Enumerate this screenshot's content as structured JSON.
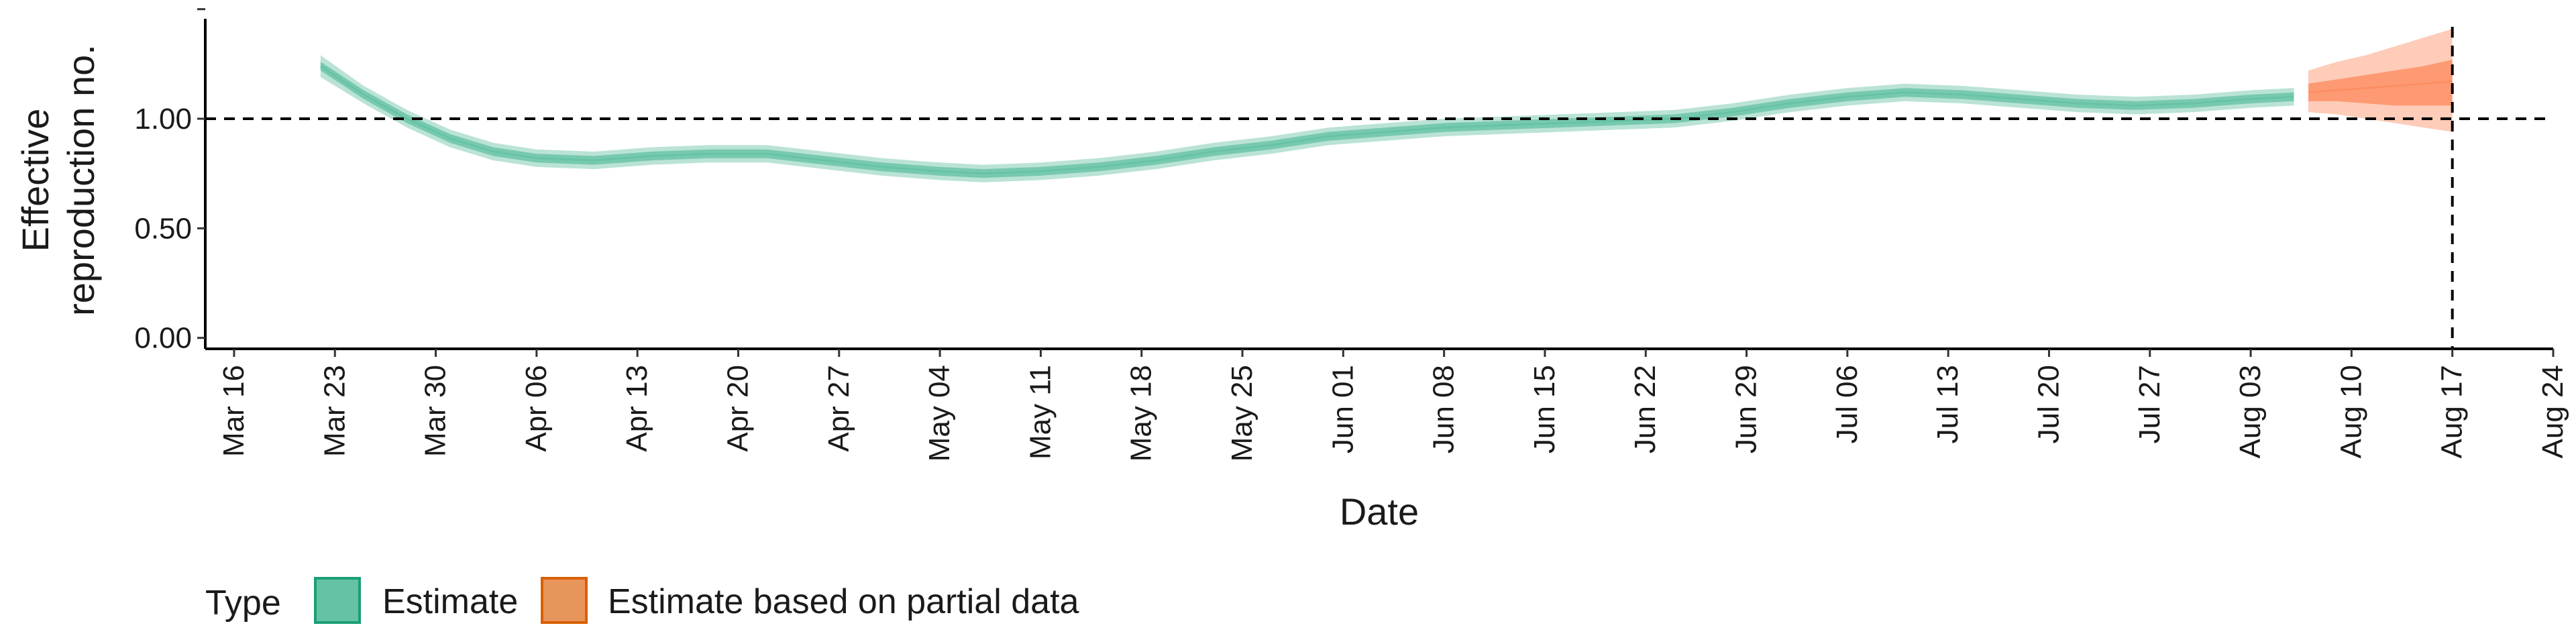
{
  "chart_data": {
    "type": "area",
    "xlabel": "Date",
    "ylabel": "Effective reproduction no.",
    "ylabel_lines": [
      "Effective",
      "reproduction no."
    ],
    "xlim": [
      "2020-03-14",
      "2020-08-24"
    ],
    "ylim": [
      -0.05,
      1.45
    ],
    "y_ticks": [
      0,
      0.5,
      1,
      1.5
    ],
    "y_tick_labels": [
      "0.00",
      "0.50",
      "1.00",
      ""
    ],
    "x_ticks": [
      "2020-03-16",
      "2020-03-23",
      "2020-03-30",
      "2020-04-06",
      "2020-04-13",
      "2020-04-20",
      "2020-04-27",
      "2020-05-04",
      "2020-05-11",
      "2020-05-18",
      "2020-05-25",
      "2020-06-01",
      "2020-06-08",
      "2020-06-15",
      "2020-06-22",
      "2020-06-29",
      "2020-07-06",
      "2020-07-13",
      "2020-07-20",
      "2020-07-27",
      "2020-08-03",
      "2020-08-10",
      "2020-08-17",
      "2020-08-24"
    ],
    "x_tick_labels": [
      "Mar 16",
      "Mar 23",
      "Mar 30",
      "Apr 06",
      "Apr 13",
      "Apr 20",
      "Apr 27",
      "May 04",
      "May 11",
      "May 18",
      "May 25",
      "Jun 01",
      "Jun 08",
      "Jun 15",
      "Jun 22",
      "Jun 29",
      "Jul 06",
      "Jul 13",
      "Jul 20",
      "Jul 27",
      "Aug 03",
      "Aug 10",
      "Aug 17",
      "Aug 24"
    ],
    "reference_lines": {
      "y": 1.0,
      "x": "2020-08-17",
      "style": "dashed"
    },
    "grid": false,
    "legend": {
      "title": "Type",
      "position": "bottom-left"
    },
    "series": [
      {
        "name": "Estimate",
        "color": "#66c2a5",
        "dates": [
          "2020-03-22",
          "2020-03-25",
          "2020-03-28",
          "2020-03-31",
          "2020-04-03",
          "2020-04-06",
          "2020-04-10",
          "2020-04-14",
          "2020-04-18",
          "2020-04-22",
          "2020-04-26",
          "2020-04-30",
          "2020-05-04",
          "2020-05-07",
          "2020-05-11",
          "2020-05-15",
          "2020-05-19",
          "2020-05-23",
          "2020-05-27",
          "2020-05-31",
          "2020-06-04",
          "2020-06-08",
          "2020-06-12",
          "2020-06-16",
          "2020-06-20",
          "2020-06-24",
          "2020-06-28",
          "2020-07-02",
          "2020-07-06",
          "2020-07-10",
          "2020-07-14",
          "2020-07-18",
          "2020-07-22",
          "2020-07-26",
          "2020-07-30",
          "2020-08-03",
          "2020-08-06"
        ],
        "median": [
          1.24,
          1.11,
          1.0,
          0.91,
          0.85,
          0.82,
          0.81,
          0.83,
          0.84,
          0.84,
          0.81,
          0.78,
          0.76,
          0.75,
          0.76,
          0.78,
          0.81,
          0.85,
          0.88,
          0.92,
          0.94,
          0.96,
          0.97,
          0.98,
          0.99,
          1.0,
          1.03,
          1.07,
          1.1,
          1.12,
          1.11,
          1.09,
          1.07,
          1.06,
          1.07,
          1.09,
          1.1
        ],
        "outer_lower": [
          1.19,
          1.07,
          0.96,
          0.87,
          0.81,
          0.78,
          0.77,
          0.79,
          0.8,
          0.8,
          0.77,
          0.74,
          0.72,
          0.71,
          0.72,
          0.74,
          0.77,
          0.81,
          0.84,
          0.88,
          0.9,
          0.92,
          0.93,
          0.94,
          0.95,
          0.96,
          0.99,
          1.03,
          1.06,
          1.08,
          1.07,
          1.05,
          1.03,
          1.02,
          1.03,
          1.05,
          1.06
        ],
        "outer_upper": [
          1.29,
          1.15,
          1.04,
          0.95,
          0.89,
          0.86,
          0.85,
          0.87,
          0.88,
          0.88,
          0.85,
          0.82,
          0.8,
          0.79,
          0.8,
          0.82,
          0.85,
          0.89,
          0.92,
          0.96,
          0.98,
          1.0,
          1.01,
          1.02,
          1.03,
          1.04,
          1.07,
          1.11,
          1.14,
          1.16,
          1.15,
          1.13,
          1.11,
          1.1,
          1.11,
          1.13,
          1.14
        ],
        "inner_lower": [
          1.22,
          1.09,
          0.98,
          0.89,
          0.83,
          0.8,
          0.79,
          0.81,
          0.82,
          0.82,
          0.79,
          0.76,
          0.74,
          0.73,
          0.74,
          0.76,
          0.79,
          0.83,
          0.86,
          0.9,
          0.92,
          0.94,
          0.95,
          0.96,
          0.97,
          0.98,
          1.01,
          1.05,
          1.08,
          1.1,
          1.09,
          1.07,
          1.05,
          1.04,
          1.05,
          1.07,
          1.08
        ],
        "inner_upper": [
          1.26,
          1.13,
          1.02,
          0.93,
          0.87,
          0.84,
          0.83,
          0.85,
          0.86,
          0.86,
          0.83,
          0.8,
          0.78,
          0.77,
          0.78,
          0.8,
          0.83,
          0.87,
          0.9,
          0.94,
          0.96,
          0.98,
          0.99,
          1.0,
          1.01,
          1.02,
          1.05,
          1.09,
          1.12,
          1.14,
          1.13,
          1.11,
          1.09,
          1.08,
          1.09,
          1.11,
          1.12
        ]
      },
      {
        "name": "Estimate based on partial data",
        "color": "#fc8d62",
        "dates": [
          "2020-08-07",
          "2020-08-09",
          "2020-08-11",
          "2020-08-13",
          "2020-08-15",
          "2020-08-17"
        ],
        "median": [
          1.12,
          1.13,
          1.14,
          1.15,
          1.16,
          1.17
        ],
        "outer_lower": [
          1.03,
          1.02,
          1.0,
          0.98,
          0.96,
          0.94
        ],
        "outer_upper": [
          1.22,
          1.26,
          1.29,
          1.33,
          1.37,
          1.41
        ],
        "inner_lower": [
          1.08,
          1.08,
          1.07,
          1.06,
          1.06,
          1.06
        ],
        "inner_upper": [
          1.16,
          1.18,
          1.2,
          1.22,
          1.24,
          1.27
        ]
      }
    ]
  }
}
